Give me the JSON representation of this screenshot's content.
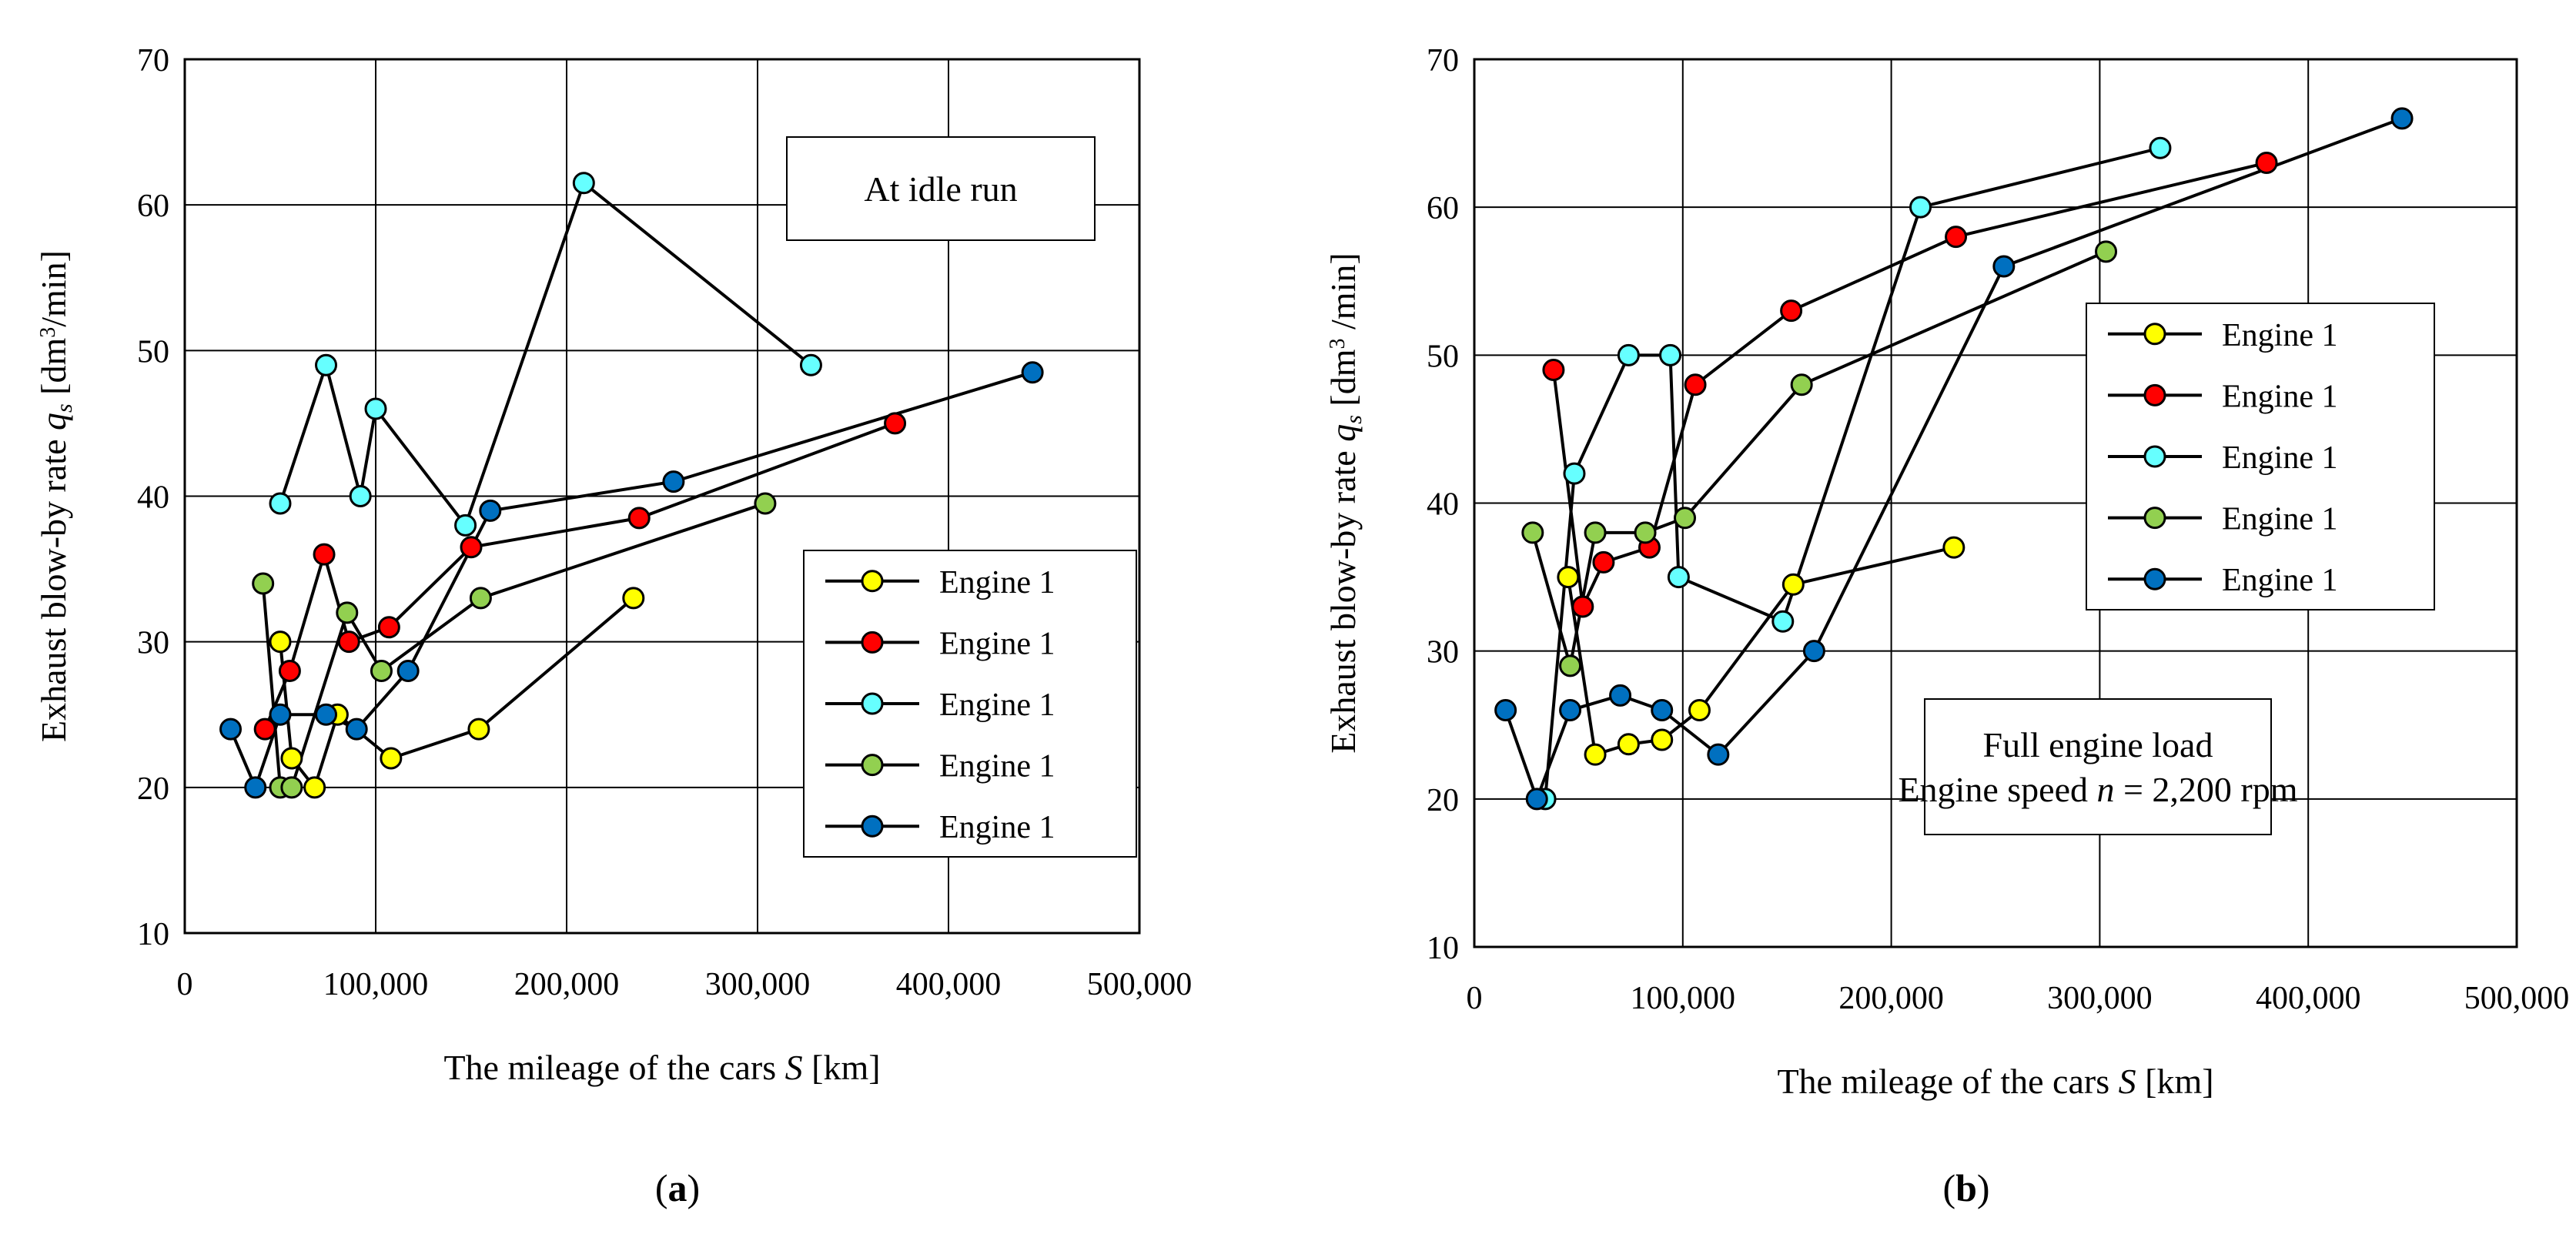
{
  "chart_data": [
    {
      "type": "line",
      "panel_label": "(a)",
      "annotation": [
        "At idle run"
      ],
      "xlabel": "The mileage of the cars S [km]",
      "ylabel": "Exhaust blow-by rate qs [dm³/min]",
      "xlim": [
        0,
        500000
      ],
      "ylim": [
        10,
        70
      ],
      "x_ticks": [
        "0",
        "100,000",
        "200,000",
        "300,000",
        "400,000",
        "500,000"
      ],
      "y_ticks": [
        "10",
        "20",
        "30",
        "40",
        "50",
        "60",
        "70"
      ],
      "grid": true,
      "legend_placement": "bottom-right",
      "series": [
        {
          "name": "Engine 1",
          "color": "#ffff00",
          "points": [
            [
              50000,
              30
            ],
            [
              56000,
              22
            ],
            [
              68000,
              20
            ],
            [
              80000,
              25
            ],
            [
              108000,
              22
            ],
            [
              154000,
              24
            ],
            [
              235000,
              33
            ]
          ]
        },
        {
          "name": "Engine 1",
          "color": "#ff0000",
          "points": [
            [
              42000,
              24
            ],
            [
              55000,
              28
            ],
            [
              73000,
              36
            ],
            [
              86000,
              30
            ],
            [
              107000,
              31
            ],
            [
              150000,
              36.5
            ],
            [
              238000,
              38.5
            ],
            [
              372000,
              45
            ]
          ]
        },
        {
          "name": "Engine 1",
          "color": "#66ffff",
          "points": [
            [
              50000,
              39.5
            ],
            [
              74000,
              49
            ],
            [
              92000,
              40
            ],
            [
              100000,
              46
            ],
            [
              147000,
              38
            ],
            [
              209000,
              61.5
            ],
            [
              328000,
              49
            ]
          ]
        },
        {
          "name": "Engine 1",
          "color": "#92d050",
          "points": [
            [
              41000,
              34
            ],
            [
              50000,
              20
            ],
            [
              56000,
              20
            ],
            [
              85000,
              32
            ],
            [
              103000,
              28
            ],
            [
              155000,
              33
            ],
            [
              304000,
              39.5
            ]
          ]
        },
        {
          "name": "Engine 1",
          "color": "#0070c0",
          "points": [
            [
              24000,
              24
            ],
            [
              37000,
              20
            ],
            [
              50000,
              25
            ],
            [
              74000,
              25
            ],
            [
              90000,
              24
            ],
            [
              117000,
              28
            ],
            [
              160000,
              39
            ],
            [
              256000,
              41
            ],
            [
              444000,
              48.5
            ]
          ]
        }
      ]
    },
    {
      "type": "line",
      "panel_label": "(b)",
      "annotation": [
        "Full engine load",
        "Engine speed n = 2,200 rpm"
      ],
      "xlabel": "The mileage of the cars S [km]",
      "ylabel": "Exhaust blow-by rate qs [dm³ /min]",
      "xlim": [
        0,
        500000
      ],
      "ylim": [
        10,
        70
      ],
      "x_ticks": [
        "0",
        "100,000",
        "200,000",
        "300,000",
        "400,000",
        "500,000"
      ],
      "y_ticks": [
        "10",
        "20",
        "30",
        "40",
        "50",
        "60",
        "70"
      ],
      "grid": true,
      "legend_placement": "right",
      "series": [
        {
          "name": "Engine 1",
          "color": "#ffff00",
          "points": [
            [
              45000,
              35
            ],
            [
              58000,
              23
            ],
            [
              74000,
              23.7
            ],
            [
              90000,
              24
            ],
            [
              108000,
              26
            ],
            [
              153000,
              34.5
            ],
            [
              230000,
              37
            ]
          ]
        },
        {
          "name": "Engine 1",
          "color": "#ff0000",
          "points": [
            [
              38000,
              49
            ],
            [
              52000,
              33
            ],
            [
              62000,
              36
            ],
            [
              84000,
              37
            ],
            [
              106000,
              48
            ],
            [
              152000,
              53
            ],
            [
              231000,
              58
            ],
            [
              380000,
              63
            ]
          ]
        },
        {
          "name": "Engine 1",
          "color": "#66ffff",
          "points": [
            [
              34000,
              20
            ],
            [
              48000,
              42
            ],
            [
              74000,
              50
            ],
            [
              94000,
              50
            ],
            [
              98000,
              35
            ],
            [
              148000,
              32
            ],
            [
              214000,
              60
            ],
            [
              329000,
              64
            ]
          ]
        },
        {
          "name": "Engine 1",
          "color": "#92d050",
          "points": [
            [
              28000,
              38
            ],
            [
              46000,
              29
            ],
            [
              58000,
              38
            ],
            [
              82000,
              38
            ],
            [
              101000,
              39
            ],
            [
              157000,
              48
            ],
            [
              303000,
              57
            ]
          ]
        },
        {
          "name": "Engine 1",
          "color": "#0070c0",
          "points": [
            [
              15000,
              26
            ],
            [
              30000,
              20
            ],
            [
              46000,
              26
            ],
            [
              70000,
              27
            ],
            [
              90000,
              26
            ],
            [
              117000,
              23
            ],
            [
              163000,
              30
            ],
            [
              254000,
              56
            ],
            [
              445000,
              66
            ]
          ]
        }
      ]
    }
  ]
}
